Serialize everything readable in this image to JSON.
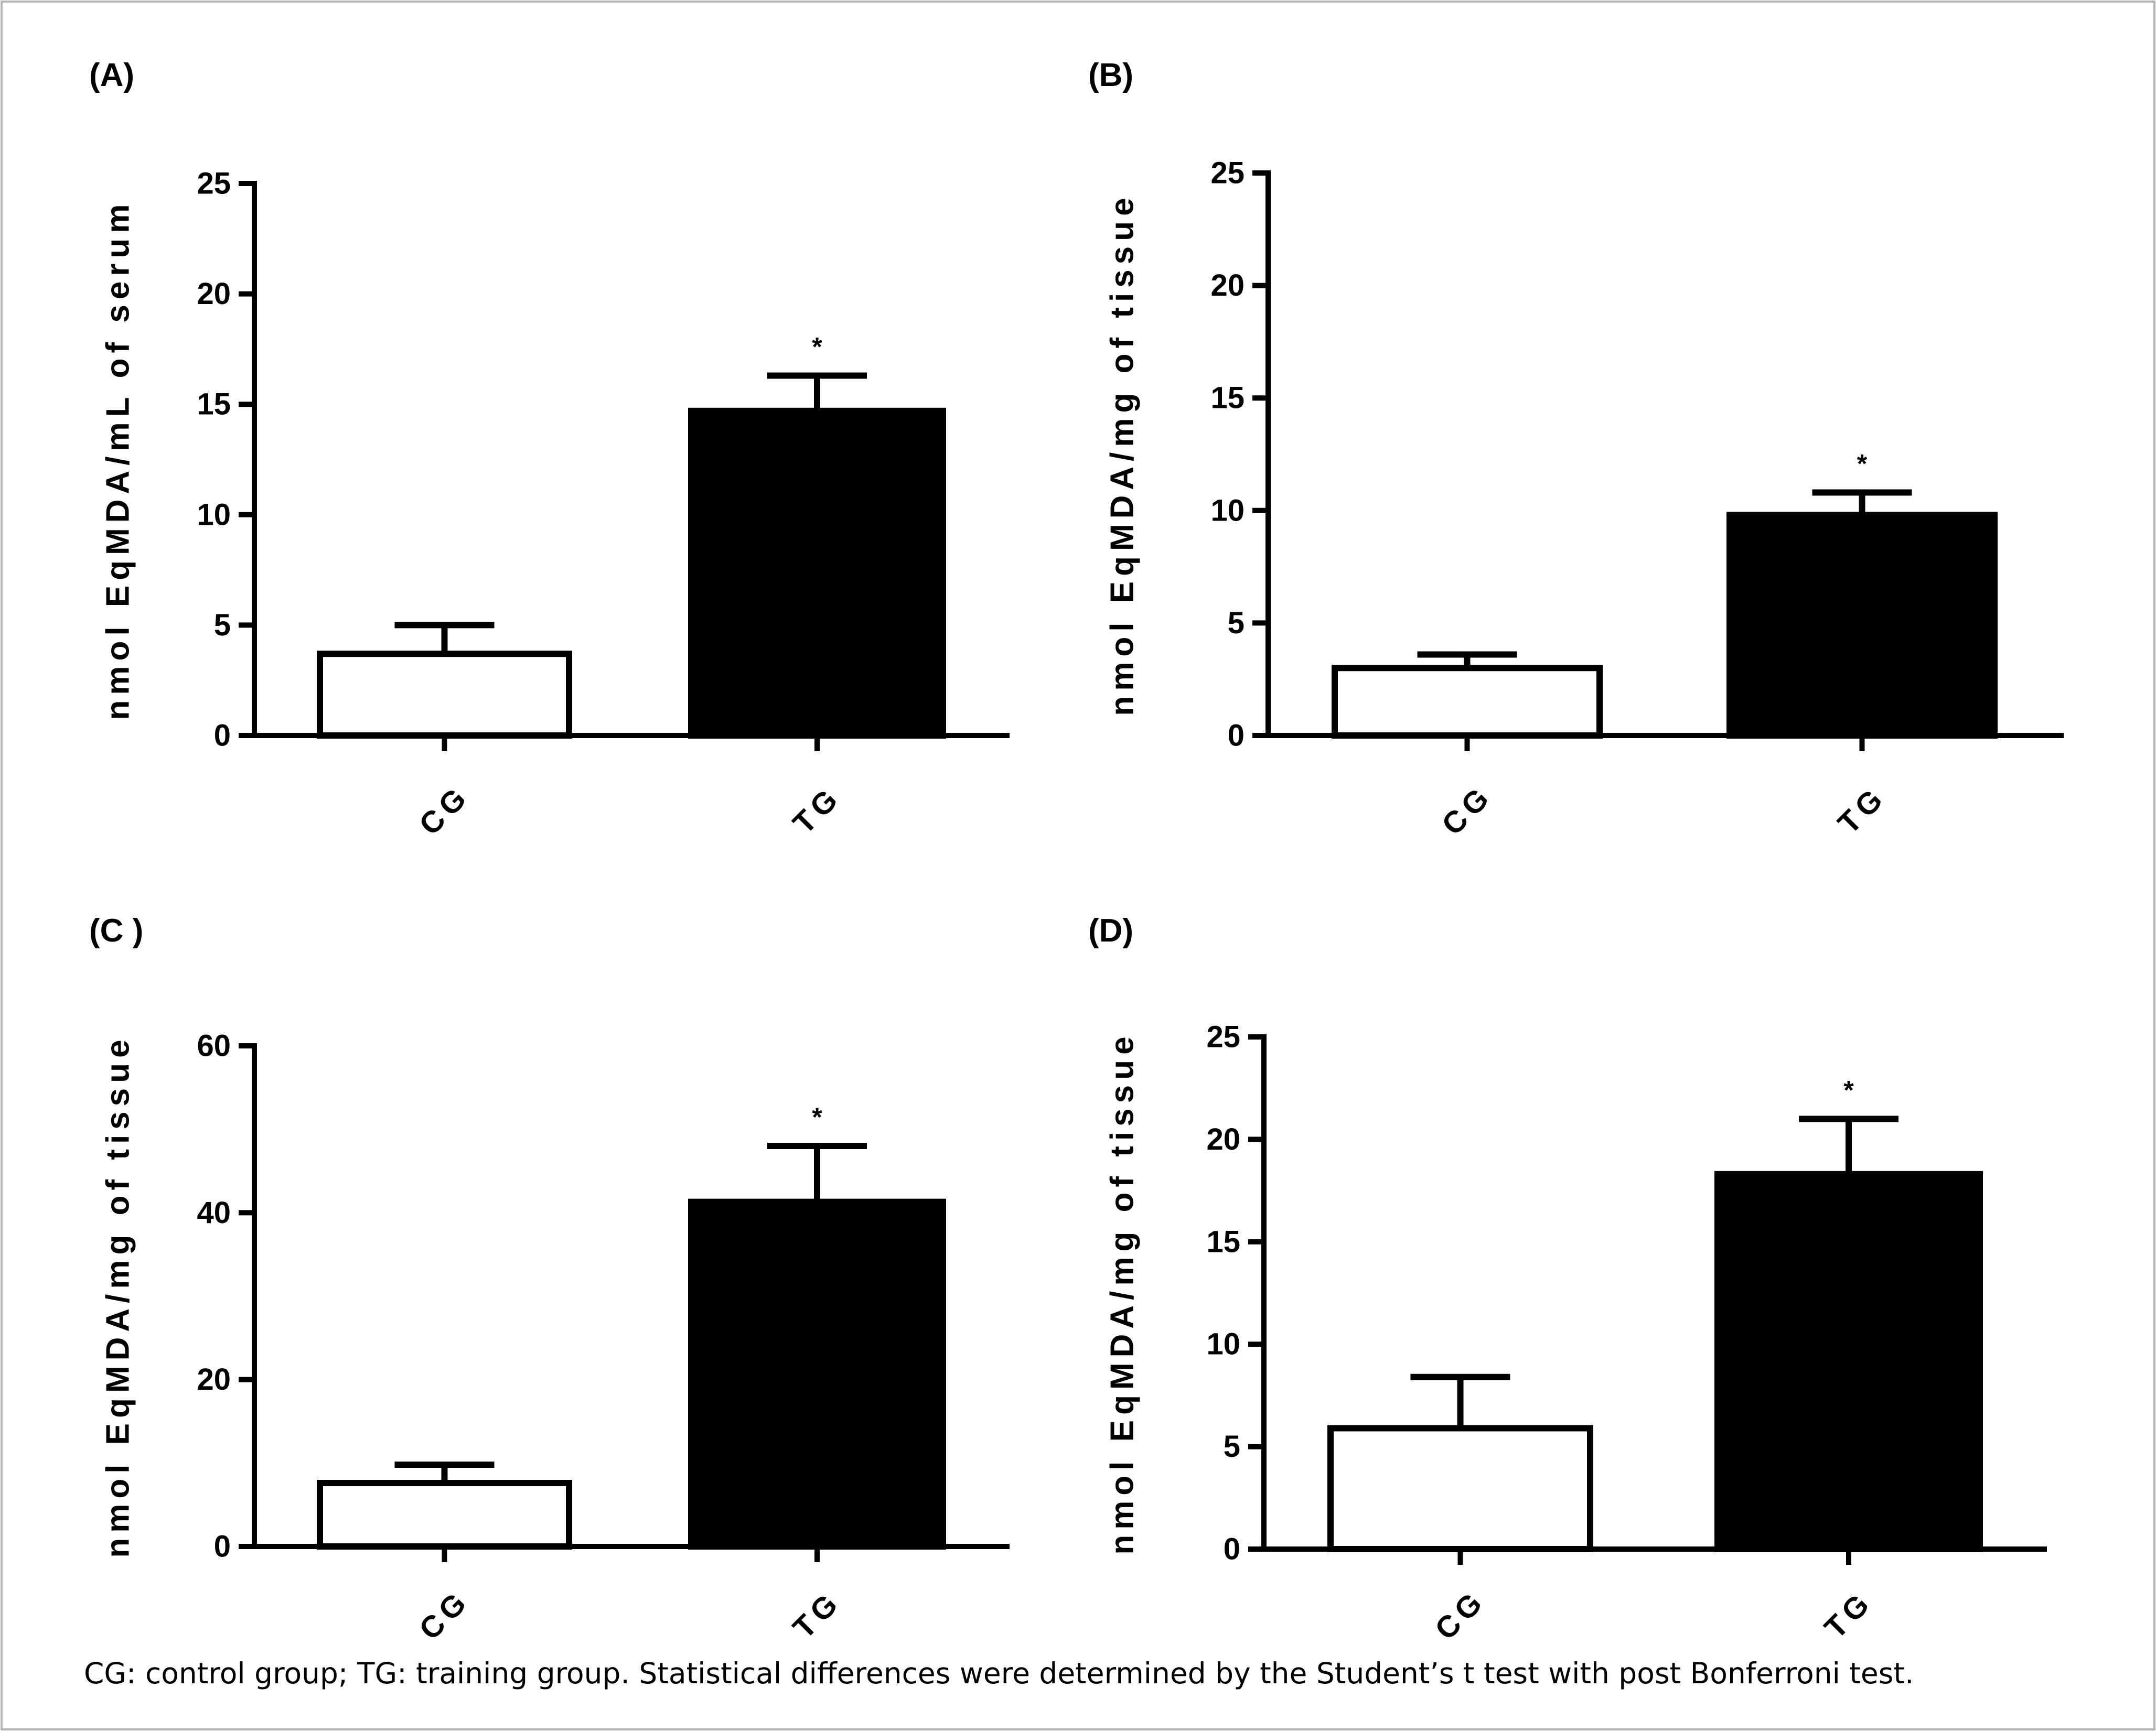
{
  "colors": {
    "cg_fill": "#ffffff",
    "tg_fill": "#000000",
    "stroke": "#000000"
  },
  "caption": "CG: control group; TG: training group. Statistical differences were determined by the Student’s t test with post Bonferroni test.",
  "chart_data": [
    {
      "panel": "(A)",
      "type": "bar",
      "ylabel": "nmol EqMDA/mL of serum",
      "ylim": [
        0,
        25
      ],
      "yticks": [
        0,
        5,
        10,
        15,
        20,
        25
      ],
      "categories": [
        "CG",
        "TG"
      ],
      "values": [
        3.7,
        14.7
      ],
      "errors": [
        1.3,
        1.6
      ],
      "significance": [
        "",
        "*"
      ]
    },
    {
      "panel": "(B)",
      "type": "bar",
      "ylabel": "nmol EqMDA/mg of tissue",
      "ylim": [
        0,
        25
      ],
      "yticks": [
        0,
        5,
        10,
        15,
        20,
        25
      ],
      "categories": [
        "CG",
        "TG"
      ],
      "values": [
        3.0,
        9.8
      ],
      "errors": [
        0.6,
        1.0
      ],
      "significance": [
        "",
        "*"
      ]
    },
    {
      "panel": "(C )",
      "type": "bar",
      "ylabel": "nmol EqMDA/mg of tissue",
      "ylim": [
        0,
        60
      ],
      "yticks": [
        0,
        20,
        40,
        60
      ],
      "categories": [
        "CG",
        "TG"
      ],
      "values": [
        7.6,
        41.3
      ],
      "errors": [
        2.2,
        6.7
      ],
      "significance": [
        "",
        "*"
      ]
    },
    {
      "panel": "(D)",
      "type": "bar",
      "ylabel": "nmol EqMDA/mg of tissue",
      "ylim": [
        0,
        25
      ],
      "yticks": [
        0,
        5,
        10,
        15,
        20,
        25
      ],
      "categories": [
        "CG",
        "TG"
      ],
      "values": [
        5.9,
        18.3
      ],
      "errors": [
        2.5,
        2.7
      ],
      "significance": [
        "",
        "*"
      ]
    }
  ]
}
